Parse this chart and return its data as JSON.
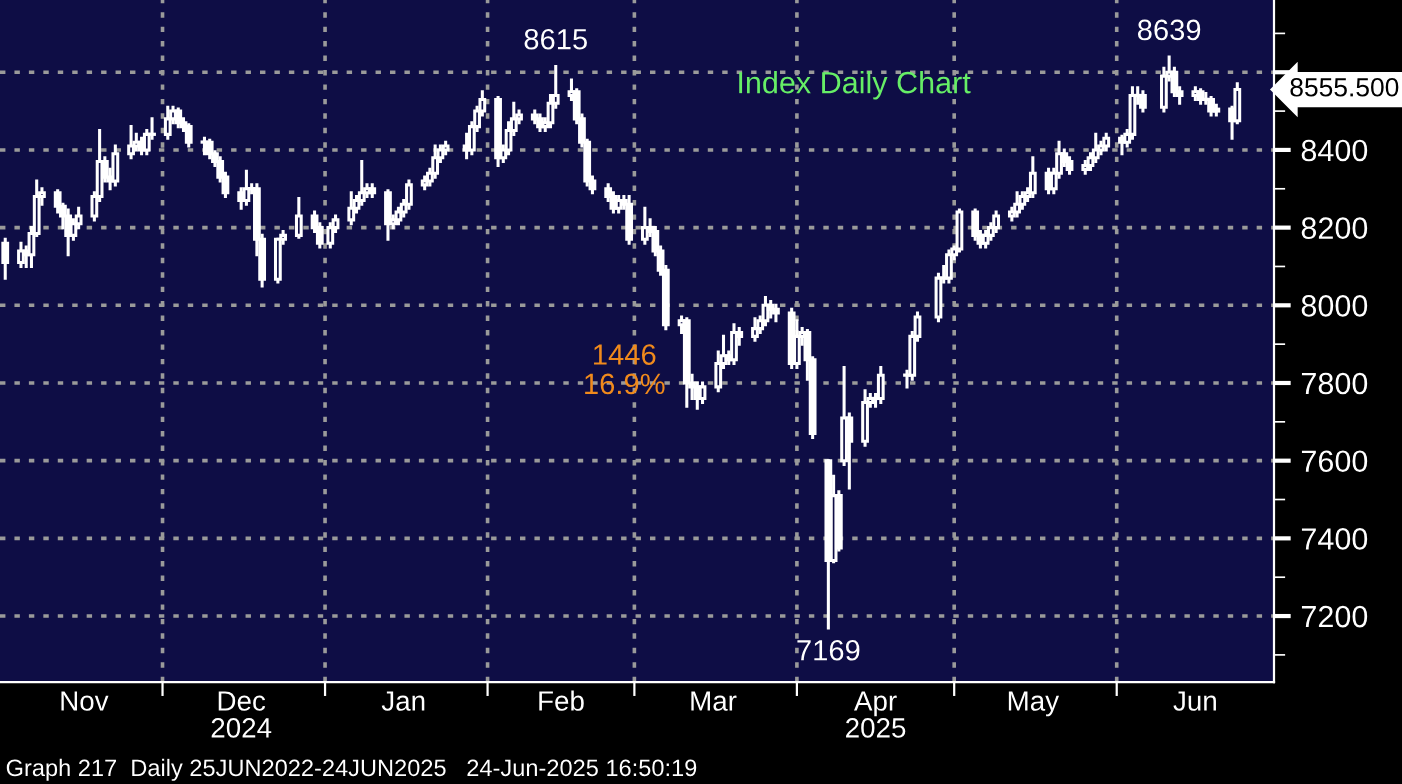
{
  "chart_data": {
    "type": "candlestick",
    "title": "Index Daily Chart",
    "x": [
      "2024-11-01",
      "2024-11-04",
      "2024-11-05",
      "2024-11-06",
      "2024-11-07",
      "2024-11-08",
      "2024-11-11",
      "2024-11-12",
      "2024-11-13",
      "2024-11-14",
      "2024-11-15",
      "2024-11-18",
      "2024-11-19",
      "2024-11-20",
      "2024-11-21",
      "2024-11-22",
      "2024-11-25",
      "2024-11-26",
      "2024-11-27",
      "2024-11-28",
      "2024-11-29",
      "2024-12-02",
      "2024-12-03",
      "2024-12-04",
      "2024-12-05",
      "2024-12-06",
      "2024-12-09",
      "2024-12-10",
      "2024-12-11",
      "2024-12-12",
      "2024-12-13",
      "2024-12-16",
      "2024-12-17",
      "2024-12-18",
      "2024-12-19",
      "2024-12-20",
      "2024-12-23",
      "2024-12-24",
      "2024-12-27",
      "2024-12-30",
      "2024-12-31",
      "2025-01-02",
      "2025-01-03",
      "2025-01-06",
      "2025-01-07",
      "2025-01-08",
      "2025-01-09",
      "2025-01-10",
      "2025-01-13",
      "2025-01-14",
      "2025-01-15",
      "2025-01-16",
      "2025-01-17",
      "2025-01-20",
      "2025-01-21",
      "2025-01-22",
      "2025-01-23",
      "2025-01-24",
      "2025-01-28",
      "2025-01-29",
      "2025-01-30",
      "2025-01-31",
      "2025-02-03",
      "2025-02-04",
      "2025-02-05",
      "2025-02-06",
      "2025-02-07",
      "2025-02-10",
      "2025-02-11",
      "2025-02-12",
      "2025-02-13",
      "2025-02-14",
      "2025-02-17",
      "2025-02-18",
      "2025-02-19",
      "2025-02-20",
      "2025-02-21",
      "2025-02-24",
      "2025-02-25",
      "2025-02-26",
      "2025-02-27",
      "2025-02-28",
      "2025-03-03",
      "2025-03-04",
      "2025-03-05",
      "2025-03-06",
      "2025-03-07",
      "2025-03-10",
      "2025-03-11",
      "2025-03-12",
      "2025-03-13",
      "2025-03-14",
      "2025-03-17",
      "2025-03-18",
      "2025-03-19",
      "2025-03-20",
      "2025-03-21",
      "2025-03-24",
      "2025-03-25",
      "2025-03-26",
      "2025-03-27",
      "2025-03-28",
      "2025-03-31",
      "2025-04-01",
      "2025-04-02",
      "2025-04-03",
      "2025-04-04",
      "2025-04-07",
      "2025-04-08",
      "2025-04-09",
      "2025-04-10",
      "2025-04-11",
      "2025-04-14",
      "2025-04-15",
      "2025-04-16",
      "2025-04-17",
      "2025-04-22",
      "2025-04-23",
      "2025-04-24",
      "2025-04-28",
      "2025-04-29",
      "2025-04-30",
      "2025-05-01",
      "2025-05-02",
      "2025-05-05",
      "2025-05-06",
      "2025-05-07",
      "2025-05-08",
      "2025-05-09",
      "2025-05-12",
      "2025-05-13",
      "2025-05-14",
      "2025-05-15",
      "2025-05-16",
      "2025-05-19",
      "2025-05-20",
      "2025-05-21",
      "2025-05-22",
      "2025-05-23",
      "2025-05-26",
      "2025-05-27",
      "2025-05-28",
      "2025-05-29",
      "2025-05-30",
      "2025-06-02",
      "2025-06-03",
      "2025-06-04",
      "2025-06-05",
      "2025-06-06",
      "2025-06-10",
      "2025-06-11",
      "2025-06-12",
      "2025-06-13",
      "2025-06-16",
      "2025-06-17",
      "2025-06-18",
      "2025-06-19",
      "2025-06-20",
      "2025-06-23",
      "2025-06-24"
    ],
    "ohlc": [
      [
        8160,
        8170,
        8070,
        8110
      ],
      [
        8110,
        8160,
        8100,
        8140
      ],
      [
        8140,
        8150,
        8100,
        8130
      ],
      [
        8130,
        8200,
        8100,
        8185
      ],
      [
        8185,
        8320,
        8180,
        8280
      ],
      [
        8280,
        8300,
        8260,
        8290
      ],
      [
        8290,
        8295,
        8240,
        8255
      ],
      [
        8255,
        8260,
        8200,
        8230
      ],
      [
        8230,
        8245,
        8130,
        8180
      ],
      [
        8180,
        8220,
        8170,
        8210
      ],
      [
        8210,
        8250,
        8200,
        8230
      ],
      [
        8230,
        8290,
        8220,
        8280
      ],
      [
        8280,
        8450,
        8270,
        8370
      ],
      [
        8370,
        8380,
        8320,
        8330
      ],
      [
        8330,
        8350,
        8300,
        8320
      ],
      [
        8320,
        8410,
        8310,
        8390
      ],
      [
        8390,
        8460,
        8380,
        8410
      ],
      [
        8410,
        8440,
        8400,
        8420
      ],
      [
        8420,
        8430,
        8390,
        8400
      ],
      [
        8400,
        8450,
        8390,
        8440
      ],
      [
        8440,
        8480,
        8430,
        8440
      ],
      [
        8440,
        8510,
        8430,
        8480
      ],
      [
        8480,
        8510,
        8470,
        8500
      ],
      [
        8500,
        8505,
        8460,
        8470
      ],
      [
        8470,
        8480,
        8450,
        8460
      ],
      [
        8460,
        8465,
        8410,
        8420
      ],
      [
        8420,
        8430,
        8390,
        8420
      ],
      [
        8420,
        8425,
        8380,
        8390
      ],
      [
        8390,
        8395,
        8360,
        8370
      ],
      [
        8370,
        8380,
        8320,
        8330
      ],
      [
        8330,
        8340,
        8280,
        8290
      ],
      [
        8290,
        8300,
        8250,
        8270
      ],
      [
        8270,
        8345,
        8260,
        8300
      ],
      [
        8300,
        8310,
        8290,
        8300
      ],
      [
        8300,
        8310,
        8130,
        8170
      ],
      [
        8170,
        8180,
        8050,
        8067
      ],
      [
        8067,
        8170,
        8060,
        8170
      ],
      [
        8170,
        8190,
        8160,
        8180
      ],
      [
        8180,
        8275,
        8175,
        8230
      ],
      [
        8230,
        8240,
        8190,
        8200
      ],
      [
        8200,
        8210,
        8150,
        8160
      ],
      [
        8160,
        8210,
        8150,
        8200
      ],
      [
        8200,
        8230,
        8190,
        8220
      ],
      [
        8220,
        8290,
        8210,
        8250
      ],
      [
        8250,
        8280,
        8240,
        8270
      ],
      [
        8270,
        8370,
        8260,
        8290
      ],
      [
        8290,
        8310,
        8280,
        8300
      ],
      [
        8300,
        8310,
        8280,
        8290
      ],
      [
        8290,
        8295,
        8170,
        8210
      ],
      [
        8210,
        8230,
        8200,
        8220
      ],
      [
        8220,
        8250,
        8210,
        8240
      ],
      [
        8240,
        8270,
        8230,
        8260
      ],
      [
        8260,
        8320,
        8250,
        8310
      ],
      [
        8310,
        8330,
        8300,
        8320
      ],
      [
        8320,
        8350,
        8310,
        8340
      ],
      [
        8340,
        8410,
        8330,
        8380
      ],
      [
        8380,
        8410,
        8370,
        8400
      ],
      [
        8400,
        8420,
        8390,
        8410
      ],
      [
        8410,
        8440,
        8380,
        8400
      ],
      [
        8400,
        8470,
        8390,
        8460
      ],
      [
        8460,
        8510,
        8450,
        8500
      ],
      [
        8500,
        8550,
        8490,
        8530
      ],
      [
        8530,
        8535,
        8360,
        8380
      ],
      [
        8380,
        8410,
        8370,
        8400
      ],
      [
        8400,
        8470,
        8390,
        8450
      ],
      [
        8450,
        8520,
        8440,
        8480
      ],
      [
        8480,
        8500,
        8470,
        8490
      ],
      [
        8490,
        8500,
        8470,
        8480
      ],
      [
        8480,
        8490,
        8450,
        8460
      ],
      [
        8460,
        8480,
        8450,
        8470
      ],
      [
        8470,
        8540,
        8460,
        8520
      ],
      [
        8520,
        8615,
        8510,
        8540
      ],
      [
        8540,
        8580,
        8530,
        8550
      ],
      [
        8550,
        8555,
        8470,
        8480
      ],
      [
        8480,
        8490,
        8410,
        8420
      ],
      [
        8420,
        8425,
        8310,
        8320
      ],
      [
        8320,
        8330,
        8290,
        8300
      ],
      [
        8300,
        8310,
        8270,
        8280
      ],
      [
        8280,
        8290,
        8240,
        8250
      ],
      [
        8250,
        8280,
        8240,
        8270
      ],
      [
        8270,
        8280,
        8250,
        8260
      ],
      [
        8260,
        8280,
        8160,
        8170
      ],
      [
        8170,
        8250,
        8160,
        8200
      ],
      [
        8200,
        8220,
        8180,
        8190
      ],
      [
        8190,
        8200,
        8130,
        8140
      ],
      [
        8140,
        8150,
        8080,
        8090
      ],
      [
        8090,
        8100,
        7940,
        7950
      ],
      [
        7950,
        7970,
        7930,
        7960
      ],
      [
        7960,
        7965,
        7740,
        7800
      ],
      [
        7800,
        7820,
        7760,
        7790
      ],
      [
        7790,
        7800,
        7735,
        7760
      ],
      [
        7760,
        7800,
        7750,
        7790
      ],
      [
        7790,
        7880,
        7780,
        7850
      ],
      [
        7850,
        7920,
        7840,
        7870
      ],
      [
        7870,
        7880,
        7850,
        7860
      ],
      [
        7860,
        7950,
        7850,
        7930
      ],
      [
        7930,
        7940,
        7900,
        7920
      ],
      [
        7920,
        7965,
        7910,
        7940
      ],
      [
        7940,
        7970,
        7930,
        7960
      ],
      [
        7960,
        8020,
        7950,
        8000
      ],
      [
        8000,
        8010,
        7970,
        7990
      ],
      [
        7990,
        8000,
        7960,
        7980
      ],
      [
        7980,
        7990,
        7840,
        7850
      ],
      [
        7850,
        7960,
        7840,
        7920
      ],
      [
        7920,
        7940,
        7900,
        7930
      ],
      [
        7930,
        7935,
        7810,
        7860
      ],
      [
        7860,
        7865,
        7660,
        7670
      ],
      [
        7600,
        7600,
        7169,
        7343
      ],
      [
        7343,
        7560,
        7340,
        7510
      ],
      [
        7510,
        7520,
        7370,
        7375
      ],
      [
        7600,
        7840,
        7590,
        7710
      ],
      [
        7710,
        7720,
        7530,
        7650
      ],
      [
        7650,
        7780,
        7640,
        7750
      ],
      [
        7750,
        7770,
        7740,
        7760
      ],
      [
        7760,
        7770,
        7740,
        7760
      ],
      [
        7760,
        7840,
        7750,
        7820
      ],
      [
        7820,
        7830,
        7790,
        7820
      ],
      [
        7820,
        7930,
        7810,
        7920
      ],
      [
        7920,
        7980,
        7910,
        7970
      ],
      [
        7970,
        8080,
        7960,
        8070
      ],
      [
        8070,
        8100,
        8060,
        8070
      ],
      [
        8070,
        8140,
        8060,
        8130
      ],
      [
        8130,
        8150,
        8120,
        8145
      ],
      [
        8145,
        8245,
        8140,
        8240
      ],
      [
        8240,
        8245,
        8170,
        8180
      ],
      [
        8180,
        8190,
        8150,
        8160
      ],
      [
        8160,
        8190,
        8150,
        8180
      ],
      [
        8180,
        8210,
        8170,
        8200
      ],
      [
        8200,
        8240,
        8190,
        8230
      ],
      [
        8230,
        8250,
        8220,
        8240
      ],
      [
        8240,
        8290,
        8230,
        8260
      ],
      [
        8260,
        8290,
        8250,
        8280
      ],
      [
        8280,
        8300,
        8270,
        8290
      ],
      [
        8290,
        8380,
        8280,
        8340
      ],
      [
        8340,
        8350,
        8290,
        8300
      ],
      [
        8300,
        8350,
        8290,
        8340
      ],
      [
        8340,
        8420,
        8330,
        8390
      ],
      [
        8390,
        8400,
        8360,
        8370
      ],
      [
        8370,
        8380,
        8340,
        8350
      ],
      [
        8350,
        8370,
        8340,
        8360
      ],
      [
        8360,
        8390,
        8350,
        8380
      ],
      [
        8380,
        8440,
        8370,
        8400
      ],
      [
        8400,
        8420,
        8390,
        8410
      ],
      [
        8410,
        8440,
        8400,
        8430
      ],
      [
        8430,
        8435,
        8390,
        8420
      ],
      [
        8420,
        8450,
        8410,
        8440
      ],
      [
        8440,
        8560,
        8430,
        8540
      ],
      [
        8540,
        8560,
        8520,
        8540
      ],
      [
        8540,
        8550,
        8500,
        8510
      ],
      [
        8510,
        8610,
        8500,
        8590
      ],
      [
        8590,
        8639,
        8580,
        8600
      ],
      [
        8600,
        8610,
        8540,
        8550
      ],
      [
        8550,
        8560,
        8520,
        8540
      ],
      [
        8540,
        8560,
        8530,
        8550
      ],
      [
        8550,
        8555,
        8520,
        8530
      ],
      [
        8530,
        8545,
        8520,
        8530
      ],
      [
        8530,
        8535,
        8490,
        8500
      ],
      [
        8500,
        8515,
        8490,
        8505
      ],
      [
        8505,
        8510,
        8430,
        8475
      ],
      [
        8475,
        8570,
        8470,
        8555.5
      ]
    ],
    "color": "#ffffff",
    "xlim": [
      "2024-10-31",
      "2025-07-01"
    ],
    "xticks": [
      {
        "value": "2024-11-16",
        "label": "Nov"
      },
      {
        "value": "2024-12-01",
        "label": null
      },
      {
        "value": "2024-12-16",
        "label": "Dec\n2024"
      },
      {
        "value": "2025-01-01",
        "label": null
      },
      {
        "value": "2025-01-16",
        "label": "Jan"
      },
      {
        "value": "2025-02-01",
        "label": null
      },
      {
        "value": "2025-02-15",
        "label": "Feb"
      },
      {
        "value": "2025-03-01",
        "label": null
      },
      {
        "value": "2025-03-16",
        "label": "Mar"
      },
      {
        "value": "2025-04-01",
        "label": null
      },
      {
        "value": "2025-04-16",
        "label": "Apr\n2025"
      },
      {
        "value": "2025-05-01",
        "label": null
      },
      {
        "value": "2025-05-16",
        "label": "May"
      },
      {
        "value": "2025-06-01",
        "label": null
      },
      {
        "value": "2025-06-16",
        "label": "Jun"
      }
    ],
    "ylim": [
      7030,
      8786
    ],
    "yticks": [
      {
        "value": 7100,
        "label": null
      },
      7200,
      {
        "value": 7300,
        "label": null
      },
      7400,
      {
        "value": 7500,
        "label": null
      },
      7600,
      {
        "value": 7700,
        "label": null
      },
      7800,
      {
        "value": 7900,
        "label": null
      },
      8000,
      {
        "value": 8100,
        "label": null
      },
      8200,
      {
        "value": 8300,
        "label": null
      },
      8400,
      {
        "value": 8500,
        "label": null
      },
      {
        "value": 8600,
        "label": null
      },
      {
        "value": 8700,
        "label": null
      }
    ],
    "grid": true,
    "annotations": [
      {
        "text": "8615",
        "x": "2025-02-14",
        "y": 8615
      },
      {
        "text": "8639",
        "x": "2025-06-11",
        "y": 8639
      },
      {
        "text": "7169",
        "x": "2025-04-07",
        "y": 7169
      },
      {
        "text": "8555.500",
        "x": "2025-06-24",
        "y": 8555.5
      },
      "1446\n16.9%",
      "Graph 217  Daily 25JUN2022-24JUN2025   24-Jun-2025 16:50:19"
    ]
  }
}
